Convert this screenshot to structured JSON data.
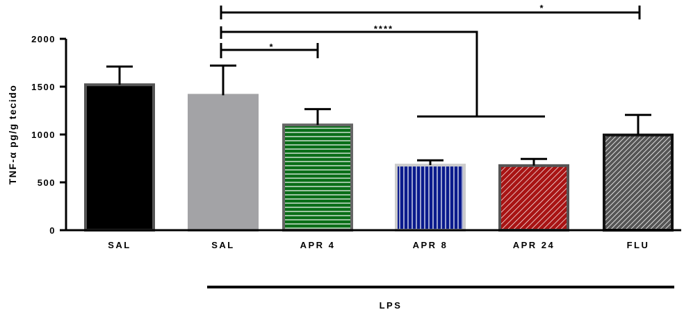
{
  "chart_data": {
    "type": "bar",
    "ylabel": "TNF-α pg/g tecido",
    "ylim": [
      0,
      2000
    ],
    "yticks": [
      0,
      500,
      1000,
      1500,
      2000
    ],
    "categories": [
      "SAL",
      "SAL",
      "APR 4",
      "APR 8",
      "APR 24",
      "FLU"
    ],
    "values": [
      1520,
      1410,
      1100,
      680,
      675,
      995
    ],
    "errors": [
      190,
      310,
      165,
      50,
      70,
      210
    ],
    "bar_styles": [
      {
        "fill": "#000000",
        "stroke": "#555555",
        "pattern": "solid"
      },
      {
        "fill": "#a3a3a6",
        "stroke": "#a3a3a6",
        "pattern": "solid"
      },
      {
        "fill": "#0a6e18",
        "stroke": "#666666",
        "pattern": "horizontal-stripes",
        "stripe": "#ffffff"
      },
      {
        "fill": "#0a1a8c",
        "stroke": "#cccccc",
        "pattern": "vertical-stripes",
        "stripe": "#ffffff"
      },
      {
        "fill": "#a81414",
        "stroke": "#555555",
        "pattern": "diagonal-stripes",
        "stripe": "#ffffff"
      },
      {
        "fill": "#666666",
        "stroke": "#111111",
        "pattern": "diagonal-stripes",
        "stripe": "#ffffff"
      }
    ],
    "group_label": "LPS",
    "significance": [
      {
        "label": "*",
        "from": 1,
        "to": 5
      },
      {
        "label": "****",
        "from": 1,
        "to": [
          3,
          4
        ]
      },
      {
        "label": "*",
        "from": 1,
        "to": 2
      }
    ]
  }
}
